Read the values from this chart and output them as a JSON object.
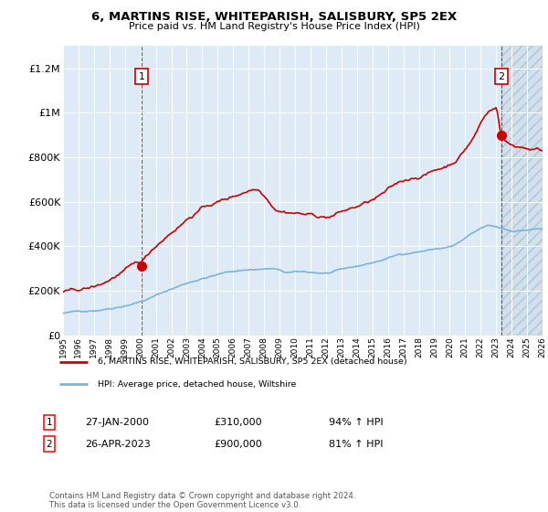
{
  "title": "6, MARTINS RISE, WHITEPARISH, SALISBURY, SP5 2EX",
  "subtitle": "Price paid vs. HM Land Registry's House Price Index (HPI)",
  "hpi_label": "HPI: Average price, detached house, Wiltshire",
  "property_label": "6, MARTINS RISE, WHITEPARISH, SALISBURY, SP5 2EX (detached house)",
  "sale1": {
    "date": "27-JAN-2000",
    "price": 310000,
    "hpi_pct": "94% ↑ HPI",
    "label": "1",
    "year": 2000.07
  },
  "sale2": {
    "date": "26-APR-2023",
    "price": 900000,
    "hpi_pct": "81% ↑ HPI",
    "label": "2",
    "year": 2023.32
  },
  "footer": "Contains HM Land Registry data © Crown copyright and database right 2024.\nThis data is licensed under the Open Government Licence v3.0.",
  "hpi_color": "#7ab4d8",
  "property_color": "#cc0000",
  "bg_color": "#deeaf5",
  "plot_bg": "#deeaf5",
  "hatch_color": "#b0c8dd",
  "ylim": [
    0,
    1300000
  ],
  "yticks": [
    0,
    200000,
    400000,
    600000,
    800000,
    1000000,
    1200000
  ],
  "ytick_labels": [
    "£0",
    "£200K",
    "£400K",
    "£600K",
    "£800K",
    "£1M",
    "£1.2M"
  ],
  "x_start_year": 1995,
  "x_end_year": 2026,
  "n_points": 372
}
